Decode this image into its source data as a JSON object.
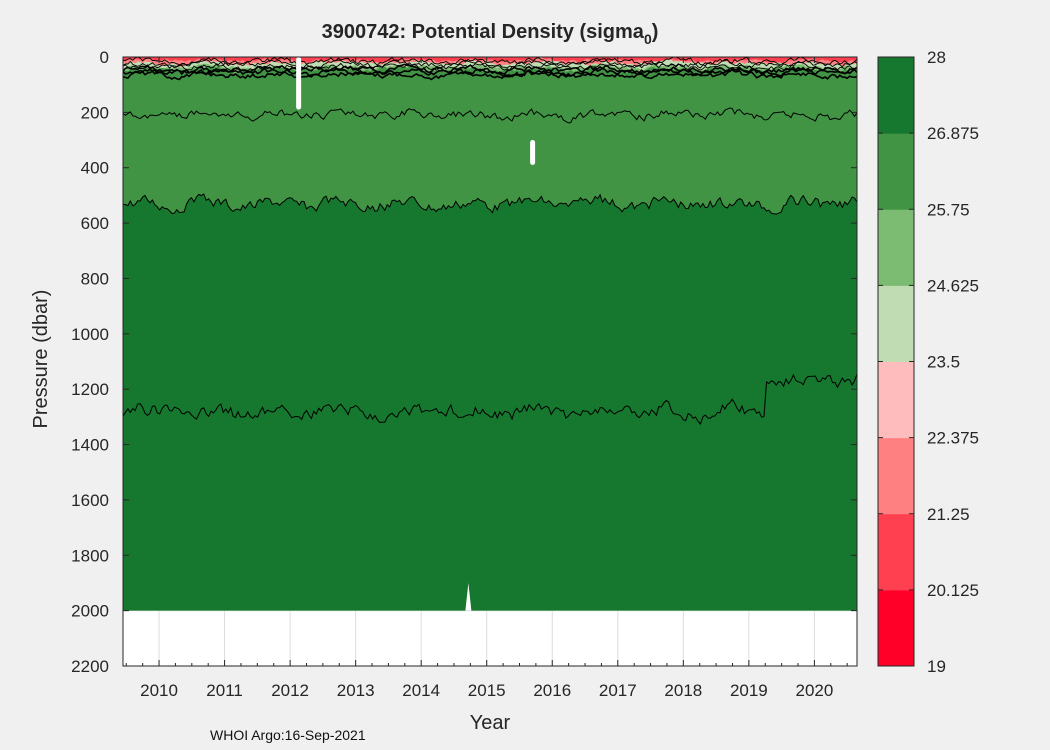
{
  "footer": "WHOI Argo:16-Sep-2021",
  "colors": {
    "background": "#f0f0f0",
    "no_data": "#ffffff",
    "contour_line": "#000000",
    "colorbar": [
      "#ff0029",
      "#ff4050",
      "#ff8080",
      "#ffbcbc",
      "#bfdcb2",
      "#7cbb72",
      "#429445",
      "#16772e"
    ]
  },
  "chart_data": {
    "type": "heatmap",
    "title": "3900742: Potential Density (sigma",
    "title_subscript": "0",
    "title_suffix": ")",
    "xlabel": "Year",
    "ylabel": "Pressure (dbar)",
    "xlim": [
      2009.45,
      2020.65
    ],
    "ylim": [
      2200,
      0
    ],
    "x_ticks": [
      2010,
      2011,
      2012,
      2013,
      2014,
      2015,
      2016,
      2017,
      2018,
      2019,
      2020
    ],
    "y_ticks": [
      0,
      200,
      400,
      600,
      800,
      1000,
      1200,
      1400,
      1600,
      1800,
      2000,
      2200
    ],
    "data_max_pressure": 2000,
    "grid": true,
    "colorbar": {
      "ticks": [
        "19",
        "20.125",
        "21.25",
        "22.375",
        "23.5",
        "24.625",
        "25.75",
        "26.875",
        "28"
      ],
      "range": [
        19,
        28
      ]
    },
    "layers": [
      {
        "level": 27.2,
        "color": "#16772e",
        "mean_depth": 530,
        "amplitude": 30
      },
      {
        "level": 26.875,
        "color": "#429445",
        "mean_depth": 60,
        "amplitude": 18
      },
      {
        "level": 25.75,
        "color": "#7cbb72",
        "mean_depth": 45,
        "amplitude": 12
      },
      {
        "level": 24.625,
        "color": "#bfdcb2",
        "mean_depth": 35,
        "amplitude": 10
      },
      {
        "level": 22.375,
        "color": "#ff8080",
        "mean_depth": 22,
        "amplitude": 10
      },
      {
        "level": 21.25,
        "color": "#ff4050",
        "mean_depth": 12,
        "amplitude": 8
      }
    ],
    "contours": [
      {
        "level": 26.9,
        "mean_depth": 210,
        "amplitude": 22
      },
      {
        "level": 27.2,
        "mean_depth": 530,
        "amplitude": 30
      },
      {
        "level": 27.6,
        "mean_depth": 1280,
        "amplitude": 35,
        "step_after": 2019.25,
        "step_depth": 1170
      }
    ],
    "gaps": [
      {
        "x": 2012.13,
        "top": 0,
        "bottom": 190
      },
      {
        "x": 2015.7,
        "top": 300,
        "bottom": 390
      },
      {
        "x": 2014.72,
        "top": 1900,
        "bottom": 2000
      }
    ]
  }
}
